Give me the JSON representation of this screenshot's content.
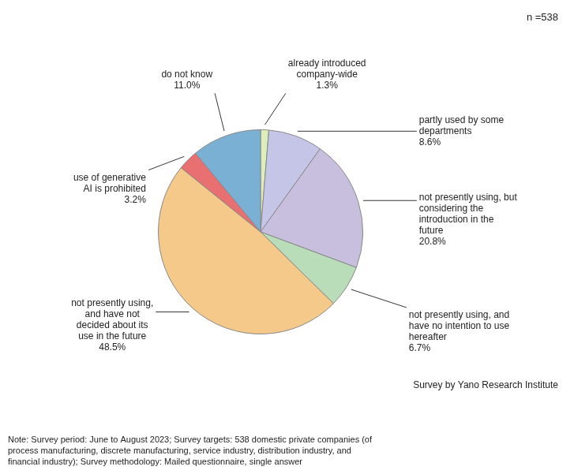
{
  "chart_data": {
    "type": "pie",
    "categories": [
      "already introduced\ncompany-wide",
      "partly used by some\ndepartments",
      "not presently using, but\nconsidering the\nintroduction in the\nfuture",
      "not presently using, and\nhave no intention to use\nhereafter",
      "not presently using,\nand have not\ndecided about its\nuse in the future",
      "use of generative\nAI is prohibited",
      "do not know"
    ],
    "values": [
      1.3,
      8.6,
      20.8,
      6.7,
      48.5,
      3.2,
      11.0
    ],
    "value_labels": [
      "1.3%",
      "8.6%",
      "20.8%",
      "6.7%",
      "48.5%",
      "3.2%",
      "11.0%"
    ],
    "colors": [
      "#ddeebb",
      "#c5c5e8",
      "#c8bedd",
      "#b8ddb8",
      "#f5c98a",
      "#e87070",
      "#7ab0d4"
    ],
    "data_labels": true,
    "annotations": [
      "n =538",
      "Survey by Yano Research Institute",
      "Note: Survey period: June to August 2023; Survey targets: 538 domestic private companies (of\nprocess manufacturing, discrete manufacturing, service industry, distribution industry, and\nfinancial industry); Survey methodology: Mailed questionnaire, single answer"
    ]
  }
}
